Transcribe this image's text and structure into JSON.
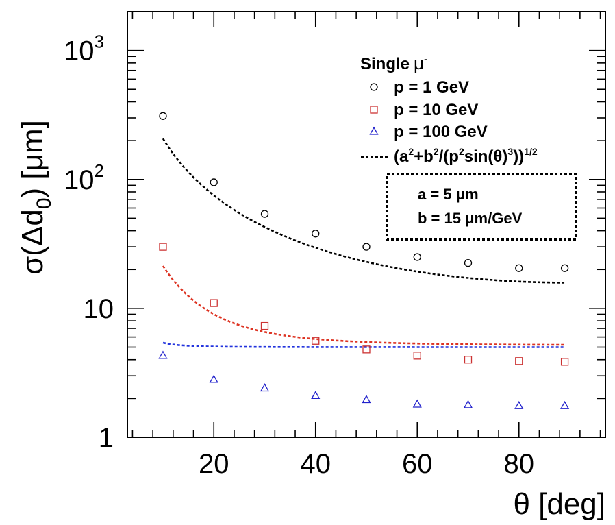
{
  "chart_data": {
    "type": "scatter",
    "log_y": true,
    "xlim": [
      3,
      97
    ],
    "ylim": [
      1,
      2000
    ],
    "x_ticks": [
      20,
      40,
      60,
      80
    ],
    "y_ticks": [
      {
        "value": 1,
        "label": "1"
      },
      {
        "value": 10,
        "label": "10"
      },
      {
        "value": 100,
        "label": "10",
        "sup": "2"
      },
      {
        "value": 1000,
        "label": "10",
        "sup": "3"
      }
    ],
    "xlabel": "θ [deg]",
    "ylabel": {
      "pre": "σ(Δd",
      "sub": "0",
      "post": ") [μm]"
    },
    "legend": {
      "title": "Single",
      "title_symbol": "μ",
      "title_sup": "-",
      "placement": "top-right"
    },
    "series": [
      {
        "name": "p = 1 GeV",
        "marker": "circle",
        "color": "#000000",
        "x": [
          10,
          20,
          30,
          40,
          50,
          60,
          70,
          80,
          89
        ],
        "y": [
          310,
          95,
          54,
          38,
          30,
          25,
          22.5,
          20.5,
          20.5
        ]
      },
      {
        "name": "p = 10 GeV",
        "marker": "square",
        "color": "#cc3333",
        "x": [
          10,
          20,
          30,
          40,
          50,
          60,
          70,
          80,
          89
        ],
        "y": [
          30,
          11,
          7.3,
          5.6,
          4.8,
          4.3,
          4.0,
          3.9,
          3.85
        ]
      },
      {
        "name": "p = 100 GeV",
        "marker": "triangle",
        "color": "#2222cc",
        "x": [
          10,
          20,
          30,
          40,
          50,
          60,
          70,
          80,
          89
        ],
        "y": [
          4.3,
          2.8,
          2.4,
          2.1,
          1.95,
          1.8,
          1.78,
          1.75,
          1.75
        ]
      }
    ],
    "fit": {
      "legend": {
        "pre": "(a",
        "s1": "2",
        "mid1": "+b",
        "s2": "2",
        "mid2": "/(p",
        "s3": "2",
        "mid3": "sin(θ)",
        "s4": "3",
        "mid4": "))",
        "s5": "1/2"
      },
      "a_um": 5,
      "b_um_gev": 15,
      "theta_range": [
        10,
        89
      ],
      "curves": [
        {
          "p_gev": 1,
          "color": "#000000"
        },
        {
          "p_gev": 10,
          "color": "#dd3322"
        },
        {
          "p_gev": 100,
          "color": "#2233dd"
        }
      ]
    },
    "annotation": {
      "line1": "a = 5 μm",
      "line2": "b = 15 μm/GeV"
    }
  }
}
